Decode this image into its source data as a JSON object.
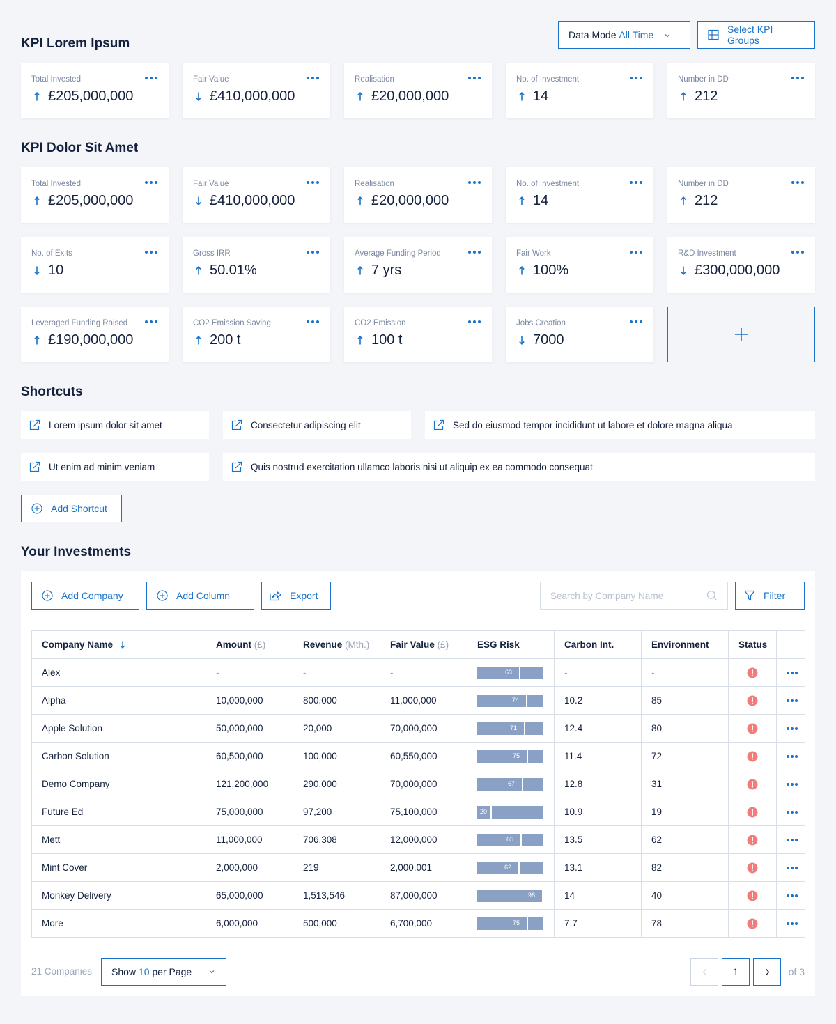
{
  "header": {
    "data_mode_label": "Data Mode",
    "data_mode_value": "All Time",
    "select_kpi_groups_label": "Select KPI Groups"
  },
  "kpi_group_1": {
    "title": "KPI Lorem Ipsum",
    "cards": [
      {
        "label": "Total Invested",
        "value": "£205,000,000",
        "trend": "up"
      },
      {
        "label": "Fair Value",
        "value": "£410,000,000",
        "trend": "down"
      },
      {
        "label": "Realisation",
        "value": "£20,000,000",
        "trend": "up"
      },
      {
        "label": "No. of Investment",
        "value": "14",
        "trend": "up"
      },
      {
        "label": "Number in DD",
        "value": "212",
        "trend": "up"
      }
    ]
  },
  "kpi_group_2": {
    "title": "KPI Dolor Sit Amet",
    "cards": [
      {
        "label": "Total Invested",
        "value": "£205,000,000",
        "trend": "up"
      },
      {
        "label": "Fair Value",
        "value": "£410,000,000",
        "trend": "down"
      },
      {
        "label": "Realisation",
        "value": "£20,000,000",
        "trend": "up"
      },
      {
        "label": "No. of Investment",
        "value": "14",
        "trend": "up"
      },
      {
        "label": "Number in DD",
        "value": "212",
        "trend": "up"
      },
      {
        "label": "No. of Exits",
        "value": "10",
        "trend": "down"
      },
      {
        "label": "Gross IRR",
        "value": "50.01%",
        "trend": "up"
      },
      {
        "label": "Average Funding Period",
        "value": "7 yrs",
        "trend": "up"
      },
      {
        "label": "Fair Work",
        "value": "100%",
        "trend": "up"
      },
      {
        "label": "R&D Investment",
        "value": "£300,000,000",
        "trend": "down"
      },
      {
        "label": "Leveraged Funding Raised",
        "value": "£190,000,000",
        "trend": "up"
      },
      {
        "label": "CO2 Emission Saving",
        "value": "200 t",
        "trend": "up"
      },
      {
        "label": "CO2 Emission",
        "value": "100 t",
        "trend": "up"
      },
      {
        "label": "Jobs Creation",
        "value": "7000",
        "trend": "down"
      }
    ]
  },
  "shortcuts": {
    "title": "Shortcuts",
    "items": [
      "Lorem ipsum dolor sit amet",
      "Consectetur adipiscing elit",
      "Sed do eiusmod tempor incididunt ut labore et dolore magna aliqua",
      "Ut enim ad minim veniam",
      "Quis nostrud exercitation ullamco laboris nisi ut aliquip ex ea commodo consequat"
    ],
    "add_label": "Add Shortcut"
  },
  "investments": {
    "title": "Your Investments",
    "toolbar": {
      "add_company": "Add Company",
      "add_column": "Add Column",
      "export": "Export",
      "search_placeholder": "Search by Company Name",
      "filter": "Filter"
    },
    "columns": [
      {
        "label": "Company Name",
        "unit": ""
      },
      {
        "label": "Amount",
        "unit": "(£)"
      },
      {
        "label": "Revenue",
        "unit": "(Mth.)"
      },
      {
        "label": "Fair Value",
        "unit": "(£)"
      },
      {
        "label": "ESG Risk",
        "unit": ""
      },
      {
        "label": "Carbon Int.",
        "unit": ""
      },
      {
        "label": "Environment",
        "unit": ""
      },
      {
        "label": "Status",
        "unit": ""
      }
    ],
    "rows": [
      {
        "name": "Alex",
        "amount": "-",
        "revenue": "-",
        "fair_value": "-",
        "esg": 63,
        "carbon": "-",
        "environment": "-"
      },
      {
        "name": "Alpha",
        "amount": "10,000,000",
        "revenue": "800,000",
        "fair_value": "11,000,000",
        "esg": 74,
        "carbon": "10.2",
        "environment": "85"
      },
      {
        "name": "Apple Solution",
        "amount": "50,000,000",
        "revenue": "20,000",
        "fair_value": "70,000,000",
        "esg": 71,
        "carbon": "12.4",
        "environment": "80"
      },
      {
        "name": "Carbon Solution",
        "amount": "60,500,000",
        "revenue": "100,000",
        "fair_value": "60,550,000",
        "esg": 75,
        "carbon": "11.4",
        "environment": "72"
      },
      {
        "name": "Demo Company",
        "amount": "121,200,000",
        "revenue": "290,000",
        "fair_value": "70,000,000",
        "esg": 67,
        "carbon": "12.8",
        "environment": "31"
      },
      {
        "name": "Future Ed",
        "amount": "75,000,000",
        "revenue": "97,200",
        "fair_value": "75,100,000",
        "esg": 20,
        "carbon": "10.9",
        "environment": "19"
      },
      {
        "name": "Mett",
        "amount": "11,000,000",
        "revenue": "706,308",
        "fair_value": "12,000,000",
        "esg": 65,
        "carbon": "13.5",
        "environment": "62"
      },
      {
        "name": "Mint Cover",
        "amount": "2,000,000",
        "revenue": "219",
        "fair_value": "2,000,001",
        "esg": 62,
        "carbon": "13.1",
        "environment": "82"
      },
      {
        "name": "Monkey Delivery",
        "amount": "65,000,000",
        "revenue": "1,513,546",
        "fair_value": "87,000,000",
        "esg": 98,
        "carbon": "14",
        "environment": "40"
      },
      {
        "name": "More",
        "amount": "6,000,000",
        "revenue": "500,000",
        "fair_value": "6,700,000",
        "esg": 75,
        "carbon": "7.7",
        "environment": "78"
      }
    ],
    "footer": {
      "count": "21 Companies",
      "per_page_prefix": "Show",
      "per_page_value": "10",
      "per_page_suffix": "per Page",
      "current_page": "1",
      "of_pages": "of 3"
    }
  },
  "colors": {
    "accent": "#1a73c8",
    "esg_bar": "#8aa1c5",
    "status_alert": "#f07c7c",
    "page_bg": "#f3f5f9"
  },
  "icons": {
    "trend_up": "arrow-up-icon",
    "trend_down": "arrow-down-icon",
    "shortcut": "external-link-icon",
    "add": "plus-circle-icon",
    "export": "share-icon",
    "search": "search-icon",
    "filter": "filter-icon",
    "status": "alert-icon",
    "row_menu": "more-dots-icon",
    "kpi_groups": "grid-icon"
  }
}
